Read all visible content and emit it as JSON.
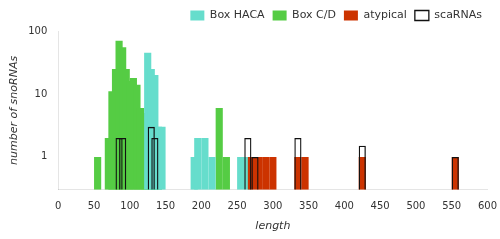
{
  "chart_data": {
    "type": "bar",
    "xlabel": "length",
    "ylabel": "number of snoRNAs",
    "bin_width": 10,
    "series": [
      {
        "name": "Box HACA",
        "color": "#66DDCC",
        "x": [
          120,
          125,
          130,
          135,
          140,
          185,
          190,
          200,
          210,
          250,
          260
        ],
        "values": [
          45,
          25,
          20,
          3,
          3,
          1,
          2,
          2,
          1,
          1,
          1
        ]
      },
      {
        "name": "Box C/D",
        "color": "#55CC44",
        "x": [
          50,
          65,
          70,
          75,
          80,
          85,
          90,
          95,
          100,
          105,
          110,
          115,
          120,
          125,
          130,
          135,
          220,
          230
        ],
        "values": [
          1,
          2,
          11,
          25,
          70,
          55,
          25,
          16,
          18,
          14,
          6,
          5,
          4,
          3,
          3,
          2,
          6,
          1
        ]
      },
      {
        "name": "atypical",
        "color": "#CC3300",
        "x": [
          265,
          275,
          285,
          295,
          330,
          340,
          420,
          550
        ],
        "values": [
          1,
          1,
          1,
          1,
          1,
          1,
          1,
          1
        ]
      },
      {
        "name": "scaRNAs",
        "color": "#111111",
        "x": [
          80,
          85,
          125,
          130,
          260,
          270,
          330,
          420,
          550
        ],
        "values": [
          2,
          2,
          3,
          2,
          2,
          1,
          2,
          1.5,
          1
        ]
      }
    ],
    "xlim": [
      0,
      600
    ],
    "xticks": [
      0,
      50,
      100,
      150,
      200,
      250,
      300,
      350,
      400,
      450,
      500,
      550,
      600
    ],
    "ylim": [
      0.3,
      100
    ],
    "yticks": [
      1,
      10,
      100
    ],
    "log": "y",
    "grid": false,
    "legend": "upper right"
  }
}
